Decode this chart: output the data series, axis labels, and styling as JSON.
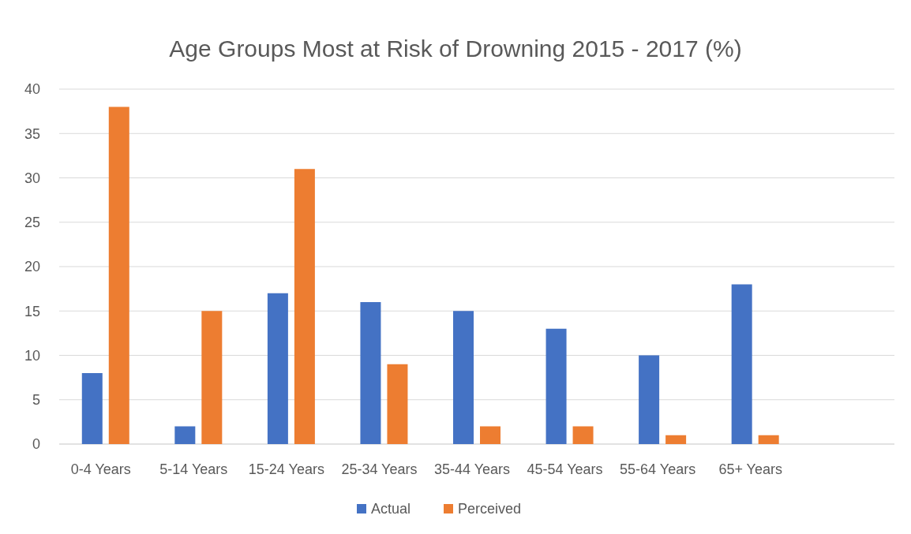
{
  "chart_data": {
    "type": "bar",
    "title": "Age Groups Most at Risk of Drowning 2015 - 2017 (%)",
    "categories": [
      "0-4 Years",
      "5-14 Years",
      "15-24 Years",
      "25-34 Years",
      "35-44 Years",
      "45-54 Years",
      "55-64 Years",
      "65+ Years",
      null
    ],
    "series": [
      {
        "name": "Actual",
        "color": "#4472c4",
        "values": [
          8,
          2,
          17,
          16,
          15,
          13,
          10,
          18,
          null
        ]
      },
      {
        "name": "Perceived",
        "color": "#ed7d31",
        "values": [
          38,
          15,
          31,
          9,
          2,
          2,
          1,
          1,
          null
        ]
      }
    ],
    "ylim": [
      0,
      40
    ],
    "yticks": [
      0,
      5,
      10,
      15,
      20,
      25,
      30,
      35,
      40
    ],
    "grid": "y",
    "legend": "bottom"
  }
}
